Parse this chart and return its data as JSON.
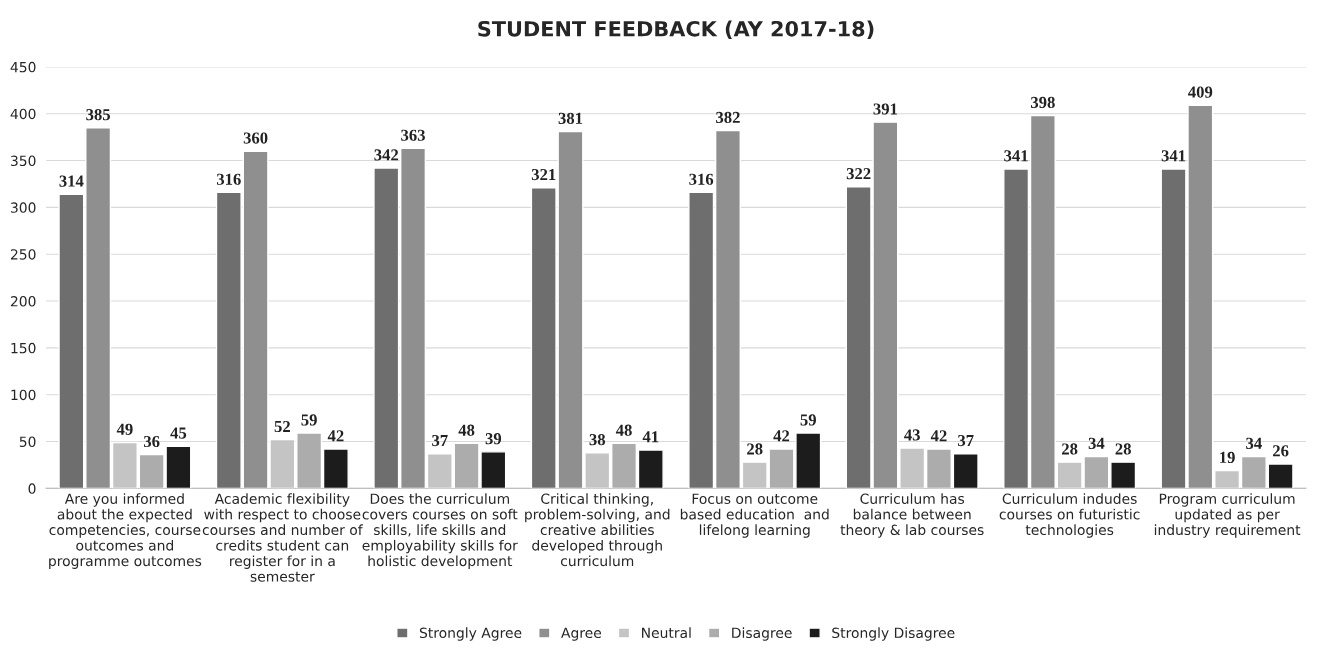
{
  "chart_data": {
    "type": "bar",
    "title": "STUDENT FEEDBACK (AY 2017-18)",
    "categories": [
      "Are you informed\nabout the expected\ncompetencies, course\noutcomes and\nprogramme outcomes",
      "Academic flexibility\nwith respect to choose\ncourses and number of\ncredits student can\nregister for in a\nsemester",
      "Does the curriculum\ncovers courses on soft\nskills, life skills and\nemployability skills for\nholistic development",
      "Critical thinking,\nproblem-solving, and\ncreative abilities\ndeveloped through\ncurriculum",
      "Focus on outcome\nbased education  and\nlifelong learning",
      "Curriculum has\nbalance between\ntheory & lab courses",
      "Curriculum indudes\ncourses on futuristic\ntechnologies",
      "Program curriculum\nupdated as per\nindustry requirement"
    ],
    "series": [
      {
        "name": "Strongly Agree",
        "color": "#6e6e6e",
        "values": [
          314,
          316,
          342,
          321,
          316,
          322,
          341,
          341
        ]
      },
      {
        "name": "Agree",
        "color": "#8f8f8f",
        "values": [
          385,
          360,
          363,
          381,
          382,
          391,
          398,
          409
        ]
      },
      {
        "name": "Neutral",
        "color": "#c4c4c4",
        "values": [
          49,
          52,
          37,
          38,
          28,
          43,
          28,
          19
        ]
      },
      {
        "name": "Disagree",
        "color": "#acacac",
        "values": [
          36,
          59,
          48,
          48,
          42,
          42,
          34,
          34
        ]
      },
      {
        "name": "Strongly Disagree",
        "color": "#1c1c1c",
        "values": [
          45,
          42,
          39,
          41,
          59,
          37,
          28,
          26
        ]
      }
    ],
    "ylim": [
      0,
      450
    ],
    "yticks": [
      0,
      50,
      100,
      150,
      200,
      250,
      300,
      350,
      400,
      450
    ],
    "grid": "y",
    "legend": "bottom",
    "data_labels": true
  }
}
